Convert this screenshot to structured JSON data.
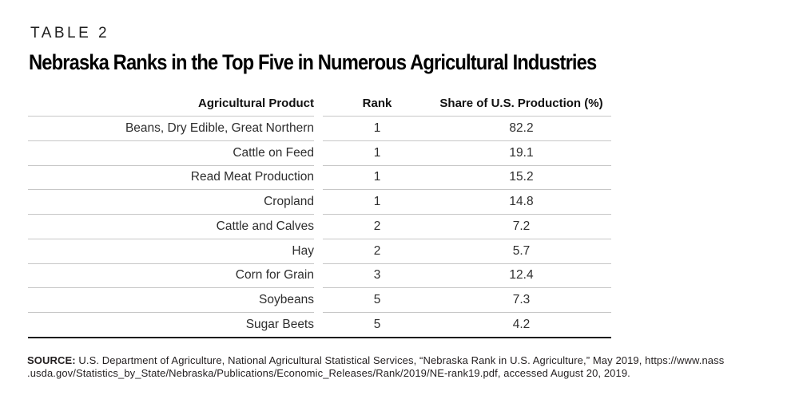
{
  "page": {
    "table_label": "TABLE 2",
    "title": "Nebraska Ranks in the Top Five in Numerous Agricultural Industries"
  },
  "table": {
    "columns": {
      "product": "Agricultural Product",
      "rank": "Rank",
      "share": "Share of U.S. Production (%)"
    },
    "rows": [
      {
        "product": "Beans, Dry Edible, Great Northern",
        "rank": "1",
        "share": "82.2"
      },
      {
        "product": "Cattle on Feed",
        "rank": "1",
        "share": "19.1"
      },
      {
        "product": "Read Meat Production",
        "rank": "1",
        "share": "15.2"
      },
      {
        "product": "Cropland",
        "rank": "1",
        "share": "14.8"
      },
      {
        "product": "Cattle and Calves",
        "rank": "2",
        "share": "7.2"
      },
      {
        "product": "Hay",
        "rank": "2",
        "share": "5.7"
      },
      {
        "product": "Corn for Grain",
        "rank": "3",
        "share": "12.4"
      },
      {
        "product": "Soybeans",
        "rank": "5",
        "share": "7.3"
      },
      {
        "product": "Sugar Beets",
        "rank": "5",
        "share": "4.2"
      }
    ]
  },
  "source": {
    "label": "SOURCE:",
    "line1": " U.S. Department of Agriculture, National Agricultural Statistical Services, “Nebraska Rank in U.S. Agriculture,” May 2019, https://www.nass",
    "line2": ".usda.gov/Statistics_by_State/Nebraska/Publications/Economic_Releases/Rank/2019/NE-rank19.pdf, accessed August 20, 2019."
  },
  "colors": {
    "background": "#ffffff",
    "rule_light": "#c7c7c7",
    "rule_heavy": "#1c1c1c",
    "text_title": "#000000",
    "text_body": "#2e2e2e"
  }
}
